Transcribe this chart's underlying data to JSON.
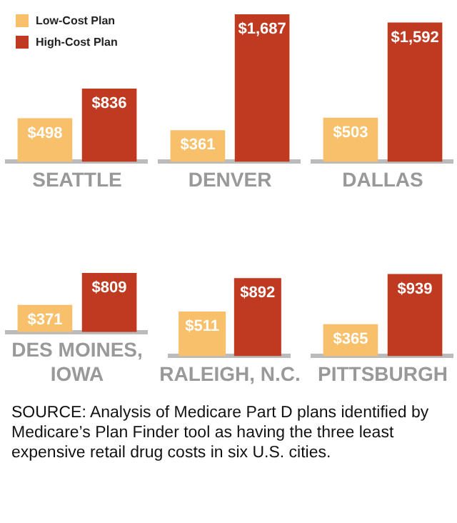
{
  "chart_data": [
    {
      "type": "bar",
      "categories": [
        "SEATTLE"
      ],
      "legend": "top left",
      "series": [
        {
          "name": "Low-Cost Plan",
          "color": "#f8c06b",
          "values": [
            498
          ],
          "value_labels": [
            "$498"
          ]
        },
        {
          "name": "High-Cost Plan",
          "color": "#bf3a20",
          "values": [
            836
          ],
          "value_labels": [
            "$836"
          ]
        }
      ]
    },
    {
      "type": "bar",
      "categories": [
        "DENVER"
      ],
      "series": [
        {
          "color": "#f8c06b",
          "values": [
            361
          ],
          "value_labels": [
            "$361"
          ]
        },
        {
          "color": "#bf3a20",
          "values": [
            1687
          ],
          "value_labels": [
            "$1,687"
          ]
        }
      ]
    },
    {
      "type": "bar",
      "categories": [
        "DALLAS"
      ],
      "series": [
        {
          "color": "#f8c06b",
          "values": [
            503
          ],
          "value_labels": [
            "$503"
          ]
        },
        {
          "color": "#bf3a20",
          "values": [
            1592
          ],
          "value_labels": [
            "$1,592"
          ]
        }
      ]
    },
    {
      "type": "bar",
      "categories": [
        "DES MOINES, IOWA"
      ],
      "series": [
        {
          "color": "#f8c06b",
          "values": [
            371
          ],
          "value_labels": [
            "$371"
          ]
        },
        {
          "color": "#bf3a20",
          "values": [
            809
          ],
          "value_labels": [
            "$809"
          ]
        }
      ]
    },
    {
      "type": "bar",
      "categories": [
        "RALEIGH, N.C."
      ],
      "series": [
        {
          "color": "#f8c06b",
          "values": [
            511
          ],
          "value_labels": [
            "$511"
          ]
        },
        {
          "color": "#bf3a20",
          "values": [
            892
          ],
          "value_labels": [
            "$892"
          ]
        }
      ]
    },
    {
      "type": "bar",
      "categories": [
        "PITTSBURGH"
      ],
      "annotations": [
        "SOURCE: Analysis of Medicare Part D plans identified by Medicare’s Plan Finder tool as having the three least expensive retail drug costs in six U.S. cities."
      ],
      "series": [
        {
          "color": "#f8c06b",
          "values": [
            365
          ],
          "value_labels": [
            "$365"
          ]
        },
        {
          "color": "#bf3a20",
          "values": [
            939
          ],
          "value_labels": [
            "$939"
          ]
        }
      ]
    }
  ]
}
